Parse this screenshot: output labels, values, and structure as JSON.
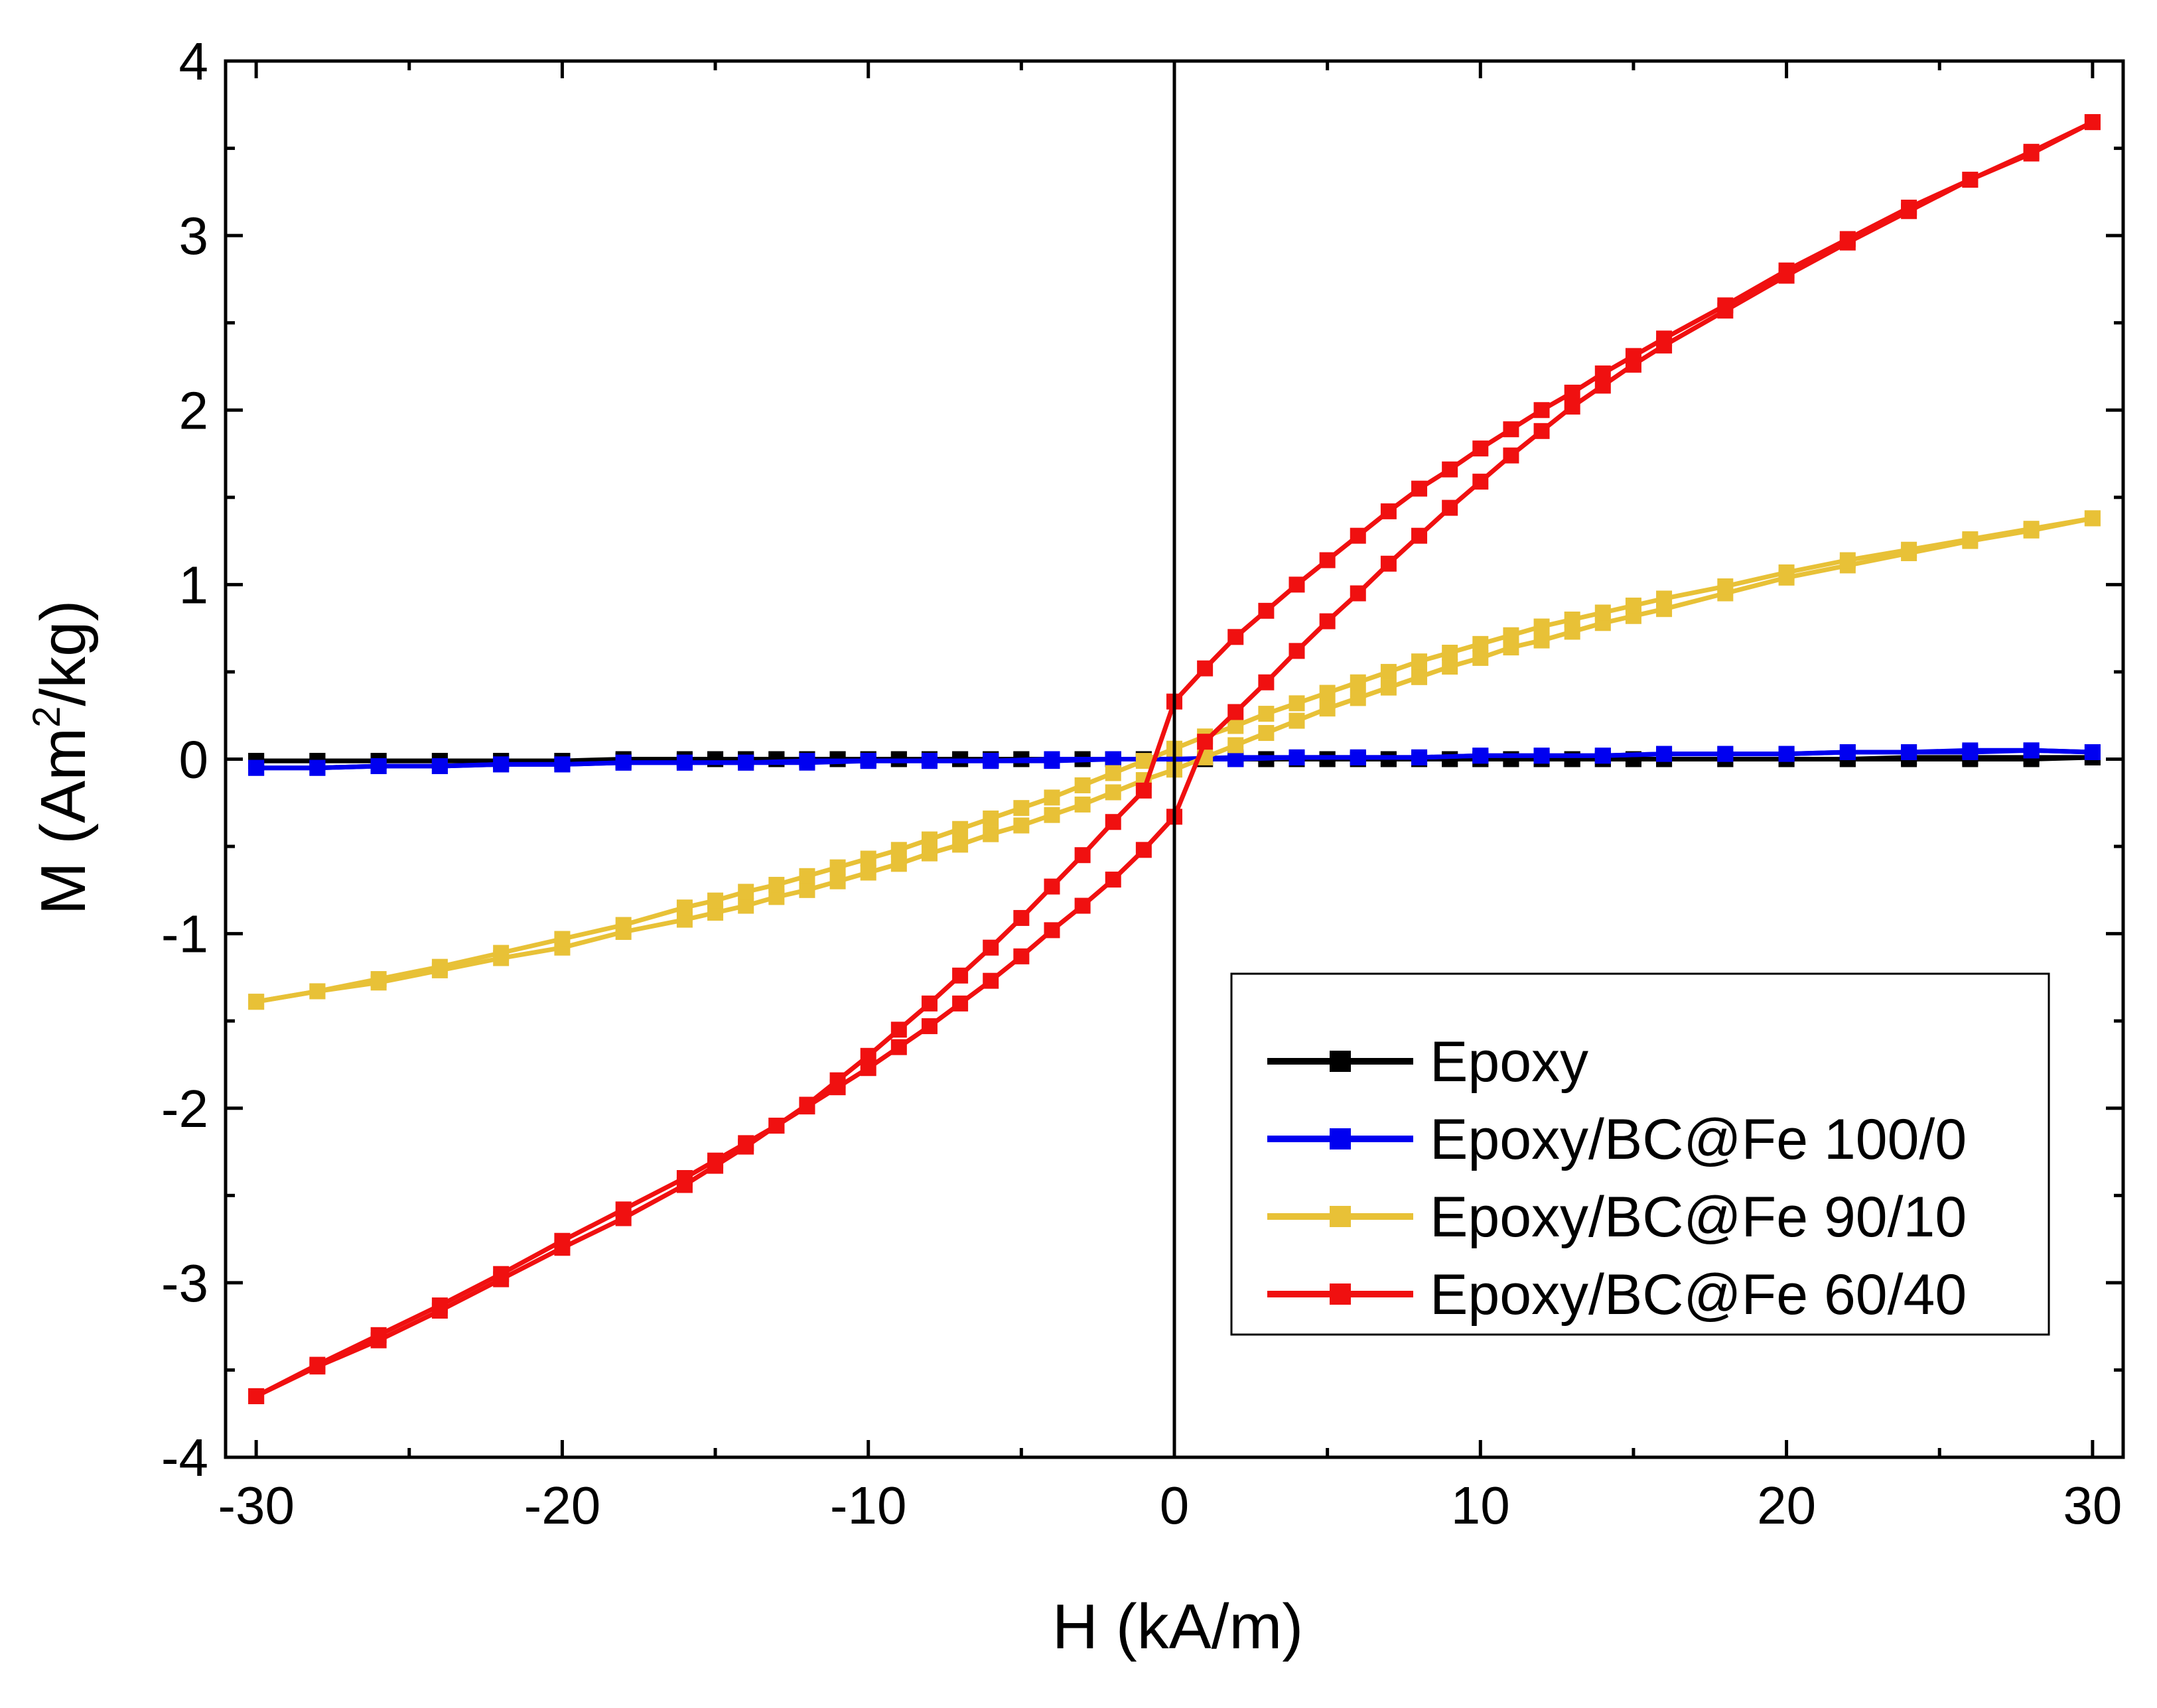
{
  "chart_data": {
    "type": "line",
    "xlabel": "H (kA/m)",
    "ylabel_main": "M (Am",
    "ylabel_sup": "2",
    "ylabel_tail": "/kg)",
    "xlim": [
      -31,
      31
    ],
    "ylim": [
      -4,
      4
    ],
    "xticks": [
      -30,
      -20,
      -10,
      0,
      10,
      20,
      30
    ],
    "yticks": [
      -4,
      -3,
      -2,
      -1,
      0,
      1,
      2,
      3,
      4
    ],
    "zero_line_x": 0,
    "legend_position": "bottom-right",
    "series": [
      {
        "name": "Epoxy",
        "color": "#000000",
        "branches": [
          {
            "x": [
              -30,
              -28,
              -26,
              -24,
              -22,
              -20,
              -18,
              -16,
              -15,
              -14,
              -13,
              -12,
              -11,
              -10,
              -9,
              -8,
              -7,
              -6,
              -5,
              -4,
              -3,
              -2,
              -1,
              0,
              1,
              2,
              3,
              4,
              5,
              6,
              7,
              8,
              9,
              10,
              11,
              12,
              13,
              14,
              15,
              16,
              18,
              20,
              22,
              24,
              26,
              28,
              30
            ],
            "y": [
              -0.01,
              -0.01,
              -0.01,
              -0.01,
              -0.01,
              -0.01,
              -0.01,
              -0.01,
              0,
              0,
              0,
              0,
              0,
              0,
              0,
              0,
              0,
              0,
              0,
              0,
              0,
              0,
              0,
              0,
              0,
              0,
              0,
              0,
              0,
              0,
              0,
              0,
              0,
              0,
              0,
              0,
              0,
              0,
              0,
              0,
              0,
              0,
              0,
              0,
              0,
              0,
              0.01
            ]
          },
          {
            "x": [
              30,
              28,
              26,
              24,
              22,
              20,
              18,
              16,
              15,
              14,
              13,
              12,
              11,
              10,
              9,
              8,
              7,
              6,
              5,
              4,
              3,
              2,
              1,
              0,
              -1,
              -2,
              -3,
              -4,
              -5,
              -6,
              -7,
              -8,
              -9,
              -10,
              -11,
              -12,
              -13,
              -14,
              -15,
              -16,
              -18,
              -20,
              -22,
              -24,
              -26,
              -28,
              -30
            ],
            "y": [
              0.01,
              0.01,
              0.01,
              0.01,
              0,
              0,
              0,
              0,
              0,
              0,
              0,
              0,
              0,
              0,
              0,
              0,
              0,
              0,
              0,
              0,
              0,
              0,
              0,
              0,
              0,
              0,
              0,
              0,
              0,
              0,
              0,
              0,
              0,
              0,
              0,
              0,
              0,
              0,
              0,
              0,
              0,
              -0.01,
              -0.01,
              -0.01,
              -0.01,
              -0.01,
              -0.01
            ]
          }
        ]
      },
      {
        "name": "Epoxy/BC@Fe 100/0",
        "color": "#0000f0",
        "branches": [
          {
            "x": [
              -30,
              -28,
              -26,
              -24,
              -22,
              -20,
              -18,
              -16,
              -14,
              -12,
              -10,
              -8,
              -6,
              -4,
              -2,
              0,
              2,
              4,
              6,
              8,
              10,
              12,
              14,
              16,
              18,
              20,
              22,
              24,
              26,
              28,
              30
            ],
            "y": [
              -0.05,
              -0.05,
              -0.04,
              -0.04,
              -0.03,
              -0.03,
              -0.02,
              -0.02,
              -0.02,
              -0.01,
              -0.01,
              -0.01,
              -0.01,
              0,
              0,
              0,
              0,
              0.01,
              0.01,
              0.01,
              0.02,
              0.02,
              0.02,
              0.03,
              0.03,
              0.03,
              0.04,
              0.04,
              0.04,
              0.05,
              0.04
            ]
          },
          {
            "x": [
              30,
              28,
              26,
              24,
              22,
              20,
              18,
              16,
              14,
              12,
              10,
              8,
              6,
              4,
              2,
              0,
              -2,
              -4,
              -6,
              -8,
              -10,
              -12,
              -14,
              -16,
              -18,
              -20,
              -22,
              -24,
              -26,
              -28,
              -30
            ],
            "y": [
              0.04,
              0.05,
              0.05,
              0.04,
              0.04,
              0.03,
              0.03,
              0.03,
              0.02,
              0.02,
              0.02,
              0.01,
              0.01,
              0.01,
              0.01,
              0,
              0,
              -0.01,
              -0.01,
              -0.01,
              -0.01,
              -0.02,
              -0.02,
              -0.02,
              -0.02,
              -0.03,
              -0.03,
              -0.04,
              -0.04,
              -0.05,
              -0.05
            ]
          }
        ]
      },
      {
        "name": "Epoxy/BC@Fe 90/10",
        "color": "#e8c137",
        "branches": [
          {
            "x": [
              -30,
              -28,
              -26,
              -24,
              -22,
              -20,
              -18,
              -16,
              -15,
              -14,
              -13,
              -12,
              -11,
              -10,
              -9,
              -8,
              -7,
              -6,
              -5,
              -4,
              -3,
              -2,
              -1,
              0,
              1,
              2,
              3,
              4,
              5,
              6,
              7,
              8,
              9,
              10,
              11,
              12,
              13,
              14,
              15,
              16,
              18,
              20,
              22,
              24,
              26,
              28,
              30
            ],
            "y": [
              -1.39,
              -1.33,
              -1.28,
              -1.21,
              -1.14,
              -1.08,
              -0.99,
              -0.92,
              -0.88,
              -0.84,
              -0.79,
              -0.75,
              -0.7,
              -0.65,
              -0.6,
              -0.54,
              -0.49,
              -0.43,
              -0.38,
              -0.32,
              -0.26,
              -0.19,
              -0.12,
              -0.06,
              0.01,
              0.08,
              0.15,
              0.22,
              0.29,
              0.35,
              0.41,
              0.47,
              0.53,
              0.58,
              0.64,
              0.68,
              0.73,
              0.78,
              0.82,
              0.86,
              0.95,
              1.04,
              1.11,
              1.18,
              1.25,
              1.31,
              1.38
            ]
          },
          {
            "x": [
              30,
              28,
              26,
              24,
              22,
              20,
              18,
              16,
              15,
              14,
              13,
              12,
              11,
              10,
              9,
              8,
              7,
              6,
              5,
              4,
              3,
              2,
              1,
              0,
              -1,
              -2,
              -3,
              -4,
              -5,
              -6,
              -7,
              -8,
              -9,
              -10,
              -11,
              -12,
              -13,
              -14,
              -15,
              -16,
              -18,
              -20,
              -22,
              -24,
              -26,
              -28,
              -30
            ],
            "y": [
              1.38,
              1.32,
              1.26,
              1.2,
              1.14,
              1.07,
              0.99,
              0.92,
              0.88,
              0.84,
              0.8,
              0.76,
              0.71,
              0.66,
              0.61,
              0.56,
              0.5,
              0.44,
              0.38,
              0.32,
              0.26,
              0.19,
              0.13,
              0.06,
              -0.01,
              -0.08,
              -0.15,
              -0.22,
              -0.28,
              -0.34,
              -0.4,
              -0.46,
              -0.52,
              -0.57,
              -0.62,
              -0.67,
              -0.72,
              -0.76,
              -0.81,
              -0.85,
              -0.95,
              -1.03,
              -1.11,
              -1.19,
              -1.26,
              -1.33,
              -1.39
            ]
          }
        ]
      },
      {
        "name": "Epoxy/BC@Fe 60/40",
        "color": "#f01010",
        "branches": [
          {
            "x": [
              -30,
              -28,
              -26,
              -24,
              -22,
              -20,
              -18,
              -16,
              -15,
              -14,
              -13,
              -12,
              -11,
              -10,
              -9,
              -8,
              -7,
              -6,
              -5,
              -4,
              -3,
              -2,
              -1,
              0,
              1,
              2,
              3,
              4,
              5,
              6,
              7,
              8,
              9,
              10,
              11,
              12,
              13,
              14,
              15,
              16,
              18,
              20,
              22,
              24,
              26,
              28,
              30
            ],
            "y": [
              -3.65,
              -3.48,
              -3.33,
              -3.16,
              -2.98,
              -2.8,
              -2.63,
              -2.44,
              -2.33,
              -2.22,
              -2.1,
              -1.98,
              -1.84,
              -1.7,
              -1.55,
              -1.4,
              -1.24,
              -1.08,
              -0.91,
              -0.73,
              -0.55,
              -0.36,
              -0.18,
              0.33,
              0.52,
              0.7,
              0.85,
              1.0,
              1.14,
              1.28,
              1.42,
              1.55,
              1.66,
              1.78,
              1.89,
              2.0,
              2.1,
              2.21,
              2.31,
              2.41,
              2.6,
              2.8,
              2.98,
              3.16,
              3.32,
              3.48,
              3.65
            ]
          },
          {
            "x": [
              30,
              28,
              26,
              24,
              22,
              20,
              18,
              16,
              15,
              14,
              13,
              12,
              11,
              10,
              9,
              8,
              7,
              6,
              5,
              4,
              3,
              2,
              1,
              0,
              -1,
              -2,
              -3,
              -4,
              -5,
              -6,
              -7,
              -8,
              -9,
              -10,
              -11,
              -12,
              -13,
              -14,
              -15,
              -16,
              -18,
              -20,
              -22,
              -24,
              -26,
              -28,
              -30
            ],
            "y": [
              3.65,
              3.47,
              3.32,
              3.14,
              2.96,
              2.77,
              2.57,
              2.37,
              2.26,
              2.14,
              2.02,
              1.88,
              1.74,
              1.59,
              1.44,
              1.28,
              1.12,
              0.95,
              0.79,
              0.62,
              0.44,
              0.27,
              0.1,
              -0.33,
              -0.52,
              -0.69,
              -0.84,
              -0.98,
              -1.13,
              -1.27,
              -1.4,
              -1.53,
              -1.65,
              -1.77,
              -1.88,
              -1.99,
              -2.1,
              -2.2,
              -2.3,
              -2.4,
              -2.58,
              -2.76,
              -2.95,
              -3.13,
              -3.3,
              -3.47,
              -3.65
            ]
          }
        ]
      }
    ]
  }
}
